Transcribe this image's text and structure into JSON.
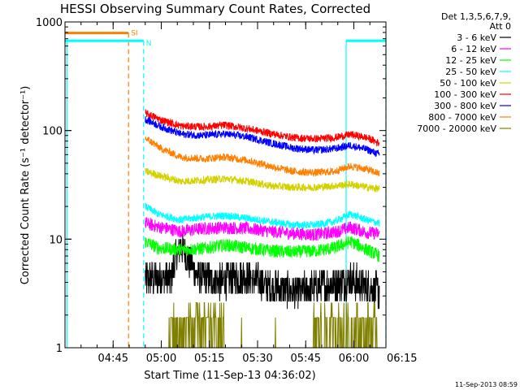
{
  "chart_data": {
    "type": "line",
    "title": "HESSI Observing Summary Count Rates, Corrected",
    "xlabel": "Start Time (11-Sep-13 04:36:02)",
    "ylabel": "Corrected Count Rate (s⁻¹ detector⁻¹)",
    "yscale": "log",
    "ylim": [
      1,
      1000
    ],
    "xlim_min": [
      36.0,
      136.0
    ],
    "x_ticks": [
      {
        "min": 51,
        "label": "04:45"
      },
      {
        "min": 66,
        "label": "05:00"
      },
      {
        "min": 81,
        "label": "05:15"
      },
      {
        "min": 96,
        "label": "05:30"
      },
      {
        "min": 111,
        "label": "05:45"
      },
      {
        "min": 126,
        "label": "06:00"
      },
      {
        "min": 141,
        "label": "06:15"
      }
    ],
    "y_ticks": [
      {
        "value": 1,
        "label": "1"
      },
      {
        "value": 10,
        "label": "10"
      },
      {
        "value": 100,
        "label": "100"
      },
      {
        "value": 1000,
        "label": "1000"
      }
    ],
    "legend": {
      "placement": "right",
      "header": [
        "Det 1,3,5,6,7,9,",
        "Att 0"
      ],
      "entries": [
        "3 - 6 keV",
        "6 - 12 keV",
        "12 - 25 keV",
        "25 - 50 keV",
        "50 - 100 keV",
        "100 - 300 keV",
        "300 - 800 keV",
        "800 - 7000 keV",
        "7000 - 20000 keV"
      ]
    },
    "series": [
      {
        "name": "3 - 6 keV",
        "color": "#000000",
        "x_min": [
          61,
          69,
          72,
          77,
          84,
          92,
          100,
          108,
          115,
          120,
          125,
          130,
          134
        ],
        "values": [
          4.3,
          4.3,
          8.5,
          4.6,
          4.0,
          4.5,
          3.7,
          3.3,
          3.6,
          3.9,
          4.2,
          3.6,
          3.3
        ]
      },
      {
        "name": "6 - 12 keV",
        "color": "#ff00ff",
        "x_min": [
          61,
          65,
          72,
          79,
          86,
          93,
          100,
          107,
          114,
          120,
          125,
          130,
          134
        ],
        "values": [
          14,
          13,
          11.8,
          12.5,
          12.8,
          12.5,
          11.8,
          11.3,
          11,
          11.6,
          12.8,
          11.5,
          11.2
        ]
      },
      {
        "name": "12 - 25 keV",
        "color": "#00ff00",
        "x_min": [
          61,
          65,
          72,
          79,
          86,
          93,
          100,
          107,
          114,
          120,
          125,
          130,
          134
        ],
        "values": [
          9.5,
          8.3,
          8.0,
          8.2,
          8.8,
          8.3,
          7.8,
          7.6,
          7.8,
          8.3,
          9.5,
          8.0,
          7.0
        ]
      },
      {
        "name": "25 - 50 keV",
        "color": "#00ffff",
        "x_min": [
          61,
          65,
          72,
          79,
          86,
          93,
          100,
          107,
          114,
          120,
          125,
          130,
          134
        ],
        "values": [
          20,
          17,
          15,
          16,
          16.5,
          15.5,
          14.5,
          13.5,
          13.5,
          14.5,
          17,
          15,
          14
        ]
      },
      {
        "name": "50 - 100 keV",
        "color": "#d2d200",
        "x_min": [
          61,
          66,
          72,
          79,
          86,
          93,
          100,
          107,
          114,
          120,
          125,
          130,
          134
        ],
        "values": [
          42,
          38,
          34,
          35,
          36,
          34,
          31,
          30,
          30,
          31,
          32,
          30,
          29
        ]
      },
      {
        "name": "100 - 300 keV",
        "color": "#ff0000",
        "x_min": [
          61,
          66,
          72,
          79,
          86,
          93,
          100,
          107,
          114,
          120,
          125,
          130,
          134
        ],
        "values": [
          145,
          125,
          110,
          108,
          112,
          104,
          94,
          86,
          84,
          86,
          92,
          86,
          76
        ]
      },
      {
        "name": "300 - 800 keV",
        "color": "#0000ff",
        "x_min": [
          61,
          66,
          72,
          79,
          86,
          93,
          100,
          107,
          114,
          120,
          125,
          130,
          134
        ],
        "values": [
          127,
          108,
          93,
          90,
          93,
          87,
          77,
          69,
          66,
          68,
          73,
          67,
          60
        ]
      },
      {
        "name": "800 - 7000 keV",
        "color": "#ff8000",
        "x_min": [
          61,
          66,
          72,
          79,
          86,
          93,
          100,
          107,
          114,
          120,
          125,
          130,
          134
        ],
        "values": [
          85,
          68,
          57,
          55,
          57,
          53,
          47,
          42,
          41,
          42,
          47,
          44,
          40
        ]
      },
      {
        "name": "7000 - 20000 keV",
        "color": "#808000",
        "x_min": [
          61,
          68,
          72,
          77,
          86,
          96,
          105,
          113,
          117,
          122,
          126,
          130,
          134
        ],
        "values": [
          1,
          1,
          1.9,
          1.9,
          1,
          1,
          1,
          1,
          1.9,
          1.9,
          1.9,
          1.9,
          1
        ]
      }
    ],
    "annotations": {
      "flags": [
        {
          "label": "SI",
          "color": "#ff8000",
          "x_from_min": 36.0,
          "x_to_min": 55.8,
          "value": 790,
          "vline_min": 55.8
        },
        {
          "label": "N",
          "color": "#00ffff",
          "x_from_min": 36.0,
          "x_to_min": 60.5,
          "value": 670,
          "vline_min": 60.5
        },
        {
          "label": "",
          "color": "#00ffff",
          "x_from_min": 123.6,
          "x_to_min": 136.0,
          "value": 670,
          "vline_min": 136.0
        }
      ],
      "cyan_solid_vlines_min": [
        36.6,
        123.6
      ]
    },
    "timestamp": "11-Sep-2013 08:59",
    "grid": false
  }
}
